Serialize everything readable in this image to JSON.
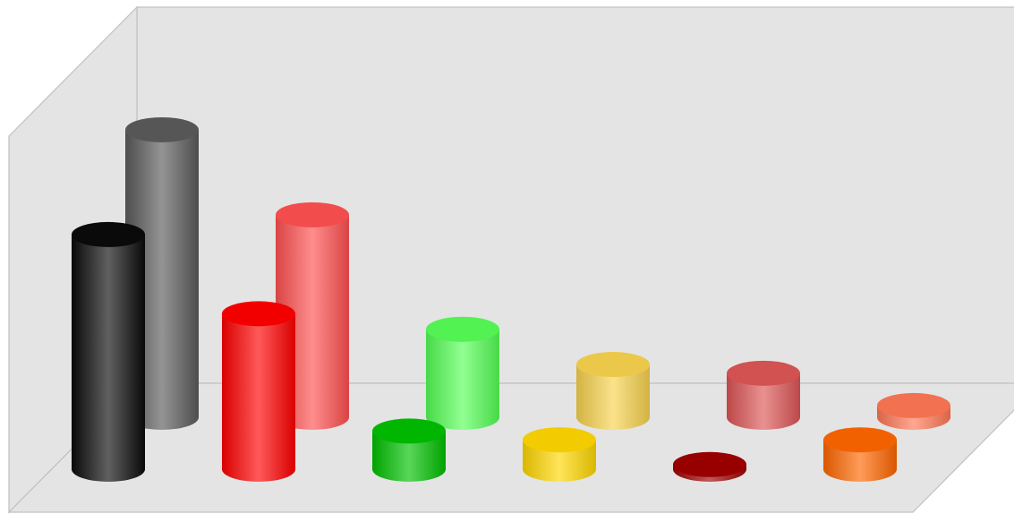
{
  "chart_data": {
    "type": "bar",
    "variant": "3d-cylinder",
    "grid": false,
    "legend": "none",
    "categories": [
      "",
      "",
      "",
      "",
      "",
      ""
    ],
    "series": [
      {
        "values": [
          40,
          26.5,
          6.5,
          5,
          0.8,
          5
        ],
        "colors": [
          "#0a0a0a",
          "#ff0000",
          "#00c000",
          "#ffd700",
          "#a00000",
          "#ff6600"
        ]
      },
      {
        "values": [
          49,
          34.5,
          15,
          9,
          7.5,
          2
        ],
        "colors": [
          "#5a5a5a",
          "#ff5050",
          "#55ff55",
          "#f8d34e",
          "#dd5555",
          "#ff7755"
        ]
      }
    ],
    "ylim": [
      0,
      50
    ]
  }
}
